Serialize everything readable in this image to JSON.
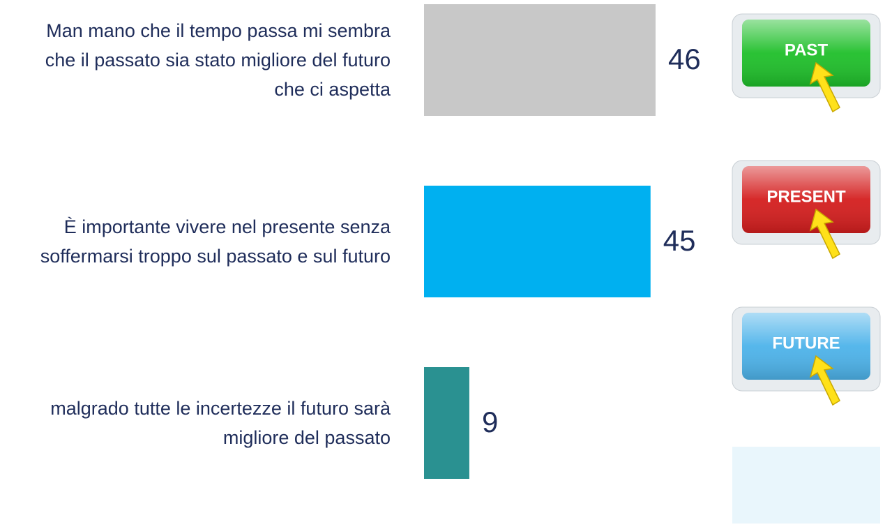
{
  "chart_data": {
    "type": "bar",
    "orientation": "horizontal",
    "categories": [
      "Man mano che il tempo passa mi sembra che il passato sia stato migliore del futuro che ci aspetta",
      "È importante vivere nel presente senza soffermarsi troppo sul passato e sul futuro",
      "malgrado tutte le incertezze il futuro sarà migliore del passato"
    ],
    "values": [
      46,
      45,
      9
    ],
    "colors": [
      "#c8c8c8",
      "#00b0f0",
      "#2a9191"
    ],
    "button_labels": [
      "PAST",
      "PRESENT",
      "FUTURE"
    ],
    "button_colors": [
      "#1fbf2a",
      "#d41e1e",
      "#4db3ea"
    ]
  }
}
